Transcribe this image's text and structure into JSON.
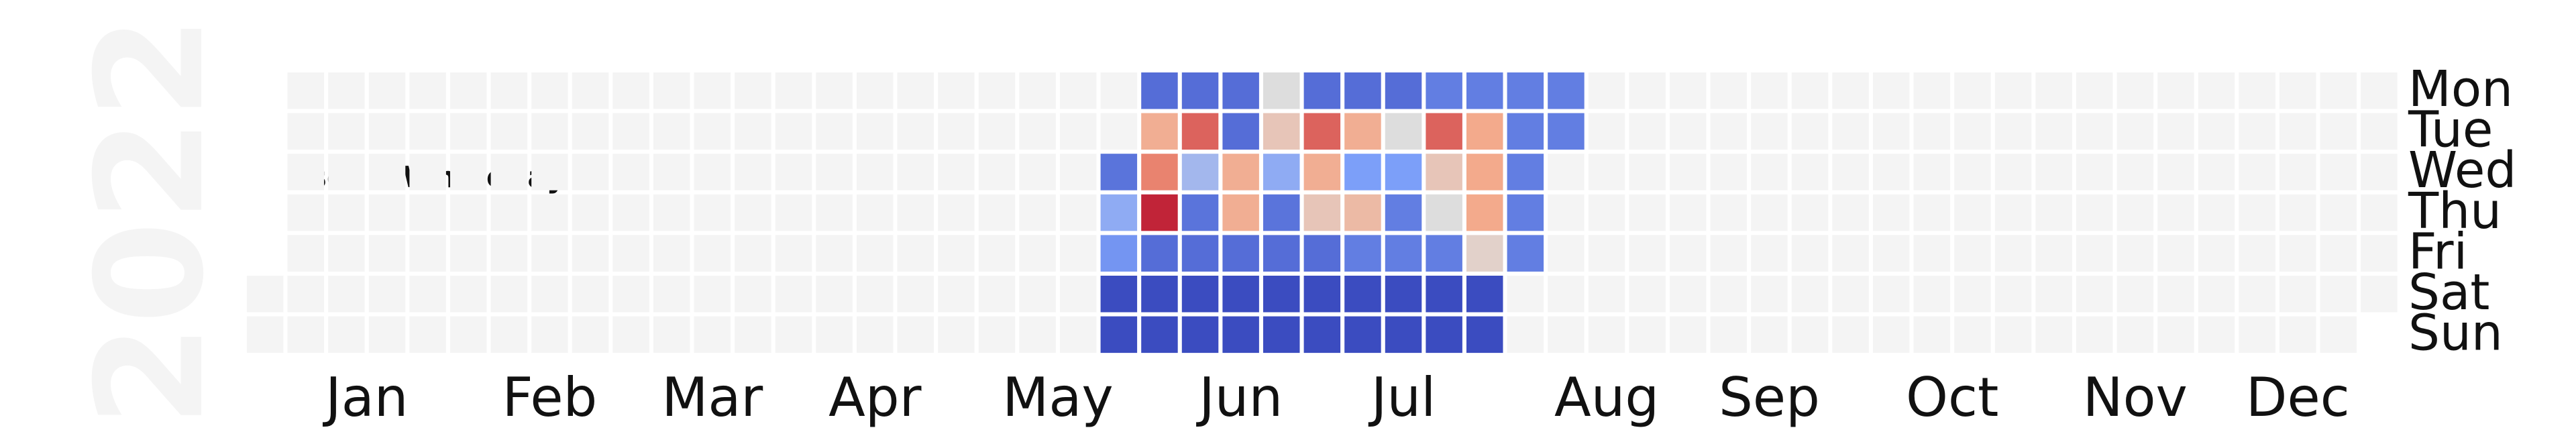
{
  "chart_data": {
    "type": "heatmap",
    "year": "2022",
    "title": "User 2 Wholeday",
    "colormap": "coolwarm",
    "empty_color": "#f4f4f4",
    "missing_color": "#dddddd",
    "month_labels": [
      "Jan",
      "Feb",
      "Mar",
      "Apr",
      "May",
      "Jun",
      "Jul",
      "Aug",
      "Sep",
      "Oct",
      "Nov",
      "Dec"
    ],
    "day_labels": [
      "Mon",
      "Tue",
      "Wed",
      "Thu",
      "Fri",
      "Sat",
      "Sun"
    ],
    "columns": 53,
    "first_weekday_index": 5,
    "days_in_year": 365,
    "value_range": [
      0,
      1
    ],
    "active_weeks": [
      {
        "week": 21,
        "values": [
          null,
          null,
          0.12,
          0.3,
          0.22,
          0.0,
          0.0
        ]
      },
      {
        "week": 22,
        "values": [
          0.1,
          0.7,
          0.8,
          0.95,
          0.1,
          0.0,
          0.0
        ]
      },
      {
        "week": 23,
        "values": [
          0.1,
          0.85,
          0.35,
          0.12,
          0.1,
          0.0,
          0.0
        ]
      },
      {
        "week": 24,
        "values": [
          0.1,
          0.1,
          0.7,
          0.7,
          0.1,
          0.0,
          0.0
        ]
      },
      {
        "week": 25,
        "values": [
          "missing",
          0.6,
          0.3,
          0.12,
          0.1,
          0.0,
          0.0
        ]
      },
      {
        "week": 26,
        "values": [
          0.1,
          0.85,
          0.7,
          0.6,
          0.1,
          0.0,
          0.0
        ]
      },
      {
        "week": 27,
        "values": [
          0.1,
          0.7,
          0.25,
          0.65,
          0.15,
          0.0,
          0.0
        ]
      },
      {
        "week": 28,
        "values": [
          0.1,
          "missing",
          0.25,
          0.15,
          0.15,
          0.0,
          0.0
        ]
      },
      {
        "week": 29,
        "values": [
          0.15,
          0.85,
          0.6,
          "missing",
          0.15,
          0.0,
          0.0
        ]
      },
      {
        "week": 30,
        "values": [
          0.15,
          0.72,
          0.72,
          0.72,
          0.55,
          0.0,
          0.0
        ]
      },
      {
        "week": 31,
        "values": [
          0.15,
          0.15,
          0.15,
          0.15,
          0.15,
          null,
          null
        ]
      },
      {
        "week": 32,
        "values": [
          0.15,
          0.15,
          null,
          null,
          null,
          null,
          null
        ]
      }
    ]
  }
}
